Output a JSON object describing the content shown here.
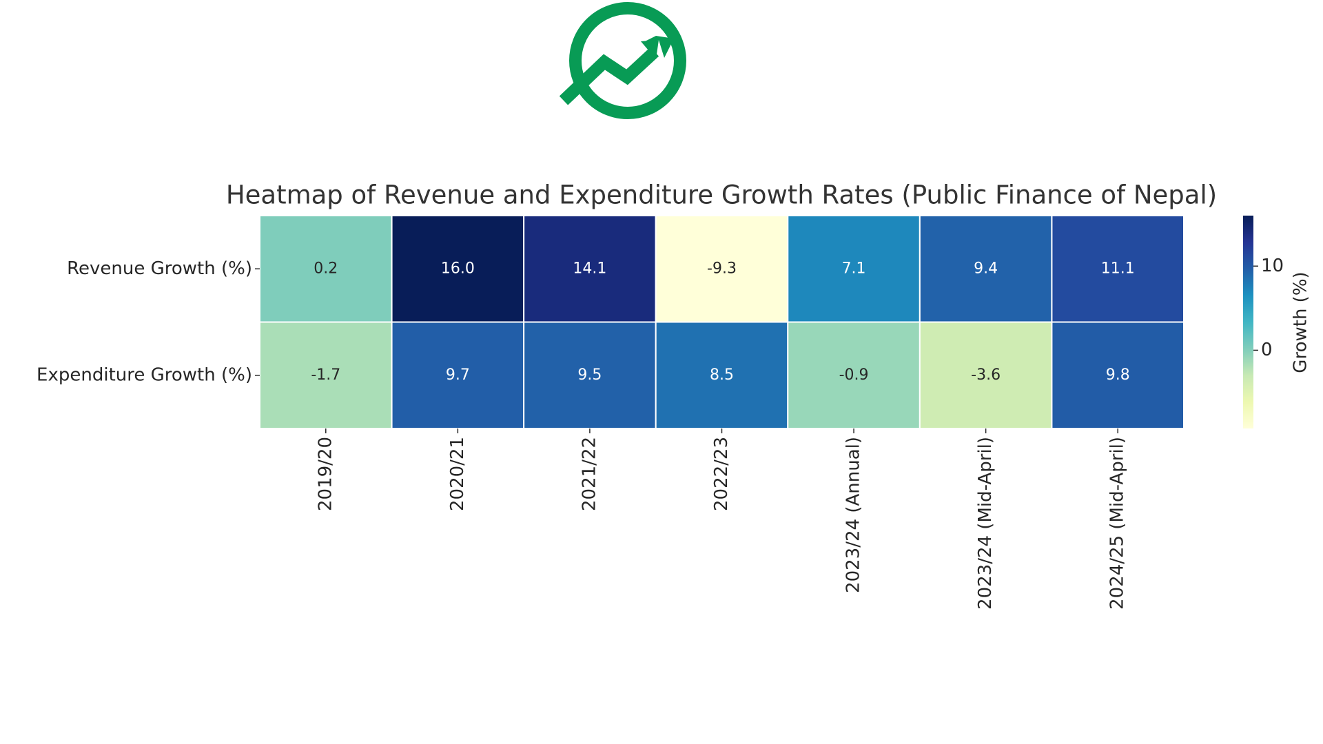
{
  "chart_data": {
    "type": "heatmap",
    "title": "Heatmap of Revenue and Expenditure Growth Rates (Public Finance of Nepal)",
    "x": [
      "2019/20",
      "2020/21",
      "2021/22",
      "2022/23",
      "2023/24 (Annual)",
      "2023/24 (Mid-April)",
      "2024/25 (Mid-April)"
    ],
    "y": [
      "Revenue Growth (%)",
      "Expenditure Growth (%)"
    ],
    "values": [
      [
        0.2,
        16.0,
        14.1,
        -9.3,
        7.1,
        9.4,
        11.1
      ],
      [
        -1.7,
        9.7,
        9.5,
        8.5,
        -0.9,
        -3.6,
        9.8
      ]
    ],
    "value_labels": [
      [
        "0.2",
        "16.0",
        "14.1",
        "-9.3",
        "7.1",
        "9.4",
        "11.1"
      ],
      [
        "-1.7",
        "9.7",
        "9.5",
        "8.5",
        "-0.9",
        "-3.6",
        "9.8"
      ]
    ],
    "colormap": "YlGnBu",
    "colorbar_label": "Growth (%)",
    "zlim": [
      -9.3,
      16.0
    ],
    "zticks": [
      0,
      10
    ]
  }
}
